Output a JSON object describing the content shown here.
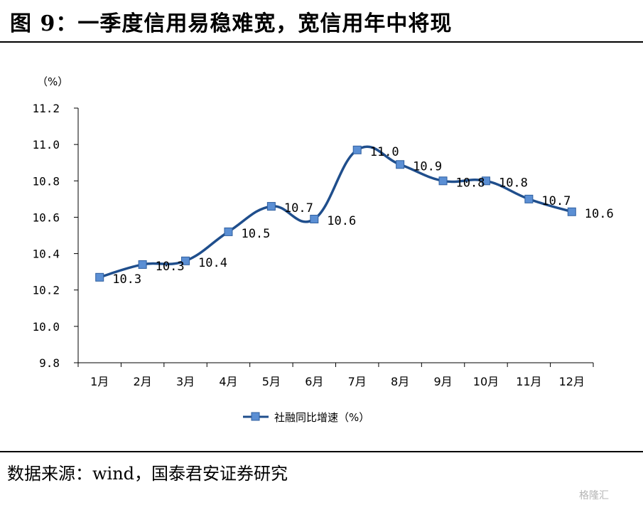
{
  "figure": {
    "title": "图 9：一季度信用易稳难宽，宽信用年中将现",
    "source": "数据来源：wind，国泰君安证券研究",
    "watermark": "格隆汇"
  },
  "colors": {
    "line": "#1f4e8c",
    "marker_fill": "#5b8fd4",
    "marker_stroke": "#2f5f9f",
    "axis": "#000000"
  },
  "chart_data": {
    "type": "line",
    "title": "",
    "unit_label": "（%）",
    "categories": [
      "1月",
      "2月",
      "3月",
      "4月",
      "5月",
      "6月",
      "7月",
      "8月",
      "9月",
      "10月",
      "11月",
      "12月"
    ],
    "series": [
      {
        "name": "社融同比增速（%）",
        "values": [
          10.27,
          10.34,
          10.36,
          10.52,
          10.66,
          10.59,
          10.97,
          10.89,
          10.8,
          10.8,
          10.7,
          10.63
        ],
        "labels": [
          "10.3",
          "10.3",
          "10.4",
          "10.5",
          "10.7",
          "10.6",
          "11.0",
          "10.9",
          "10.8",
          "10.8",
          "10.7",
          "10.6"
        ]
      }
    ],
    "ylim": [
      9.8,
      11.2
    ],
    "yticks": [
      "9.8",
      "10.0",
      "10.2",
      "10.4",
      "10.6",
      "10.8",
      "11.0",
      "11.2"
    ],
    "legend": "bottom-center",
    "grid": false
  }
}
